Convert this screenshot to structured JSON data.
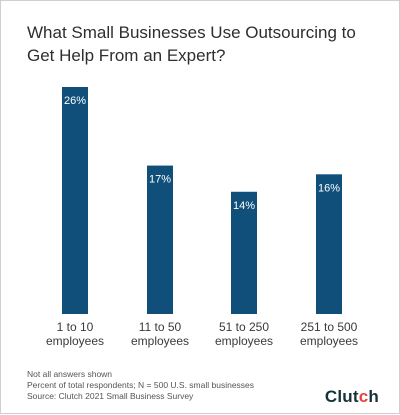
{
  "chart_data": {
    "type": "bar",
    "title": "What Small Businesses Use Outsourcing to Get Help From an Expert?",
    "categories": [
      [
        "1 to 10",
        "employees"
      ],
      [
        "11 to 50",
        "employees"
      ],
      [
        "51 to 250",
        "employees"
      ],
      [
        "251 to 500",
        "employees"
      ]
    ],
    "values": [
      26,
      17,
      14,
      16
    ],
    "value_labels": [
      "26%",
      "17%",
      "14%",
      "16%"
    ],
    "ylim": [
      0,
      26
    ],
    "grid": false,
    "xlabel": "",
    "ylabel": "",
    "bar_color": "#0f4f7a"
  },
  "footnotes": {
    "line1": "Not all answers shown",
    "line2": "Percent of total respondents; N = 500 U.S. small businesses",
    "line3": "Source: Clutch 2021 Small Business Survey"
  },
  "logo": {
    "text_before": "Clut",
    "accent": "c",
    "text_after": "h",
    "accent_color": "#e8443a"
  }
}
